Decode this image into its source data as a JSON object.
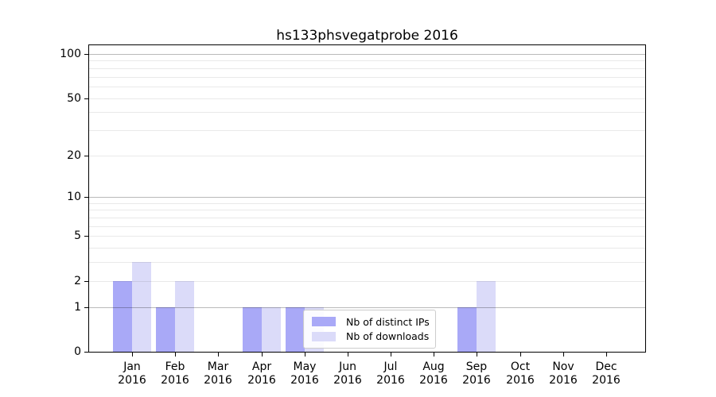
{
  "chart_data": {
    "type": "bar",
    "title": "hs133phsvegatprobe 2016",
    "categories": [
      "Jan",
      "Feb",
      "Mar",
      "Apr",
      "May",
      "Jun",
      "Jul",
      "Aug",
      "Sep",
      "Oct",
      "Nov",
      "Dec"
    ],
    "year_label": "2016",
    "series": [
      {
        "name": "Nb of distinct IPs",
        "color": "#a9a9f7",
        "values": [
          2,
          1,
          0,
          1,
          1,
          0,
          0,
          0,
          1,
          0,
          0,
          0
        ]
      },
      {
        "name": "Nb of downloads",
        "color": "#dbdbf9",
        "values": [
          3,
          2,
          0,
          1,
          1,
          0,
          0,
          0,
          2,
          0,
          0,
          0
        ]
      }
    ],
    "xlabel": "",
    "ylabel": "",
    "scale": "log1p",
    "ylim": [
      0,
      110
    ],
    "y_tick_values": [
      0,
      1,
      2,
      5,
      10,
      20,
      50,
      100
    ],
    "y_major_gridlines": [
      1,
      10,
      100
    ],
    "y_minor_gridlines": [
      2,
      3,
      4,
      5,
      6,
      7,
      8,
      9,
      20,
      30,
      40,
      50,
      60,
      70,
      80,
      90
    ],
    "grid": true,
    "legend_position": "lower center"
  },
  "colors": {
    "background": "#ffffff",
    "spine": "#000000",
    "bar_distinct_ips": "#a9a9f7",
    "bar_downloads": "#dbdbf9",
    "grid_major": "#bbbbbb",
    "grid_minor": "#ebebeb",
    "legend_border": "#cccccc"
  }
}
